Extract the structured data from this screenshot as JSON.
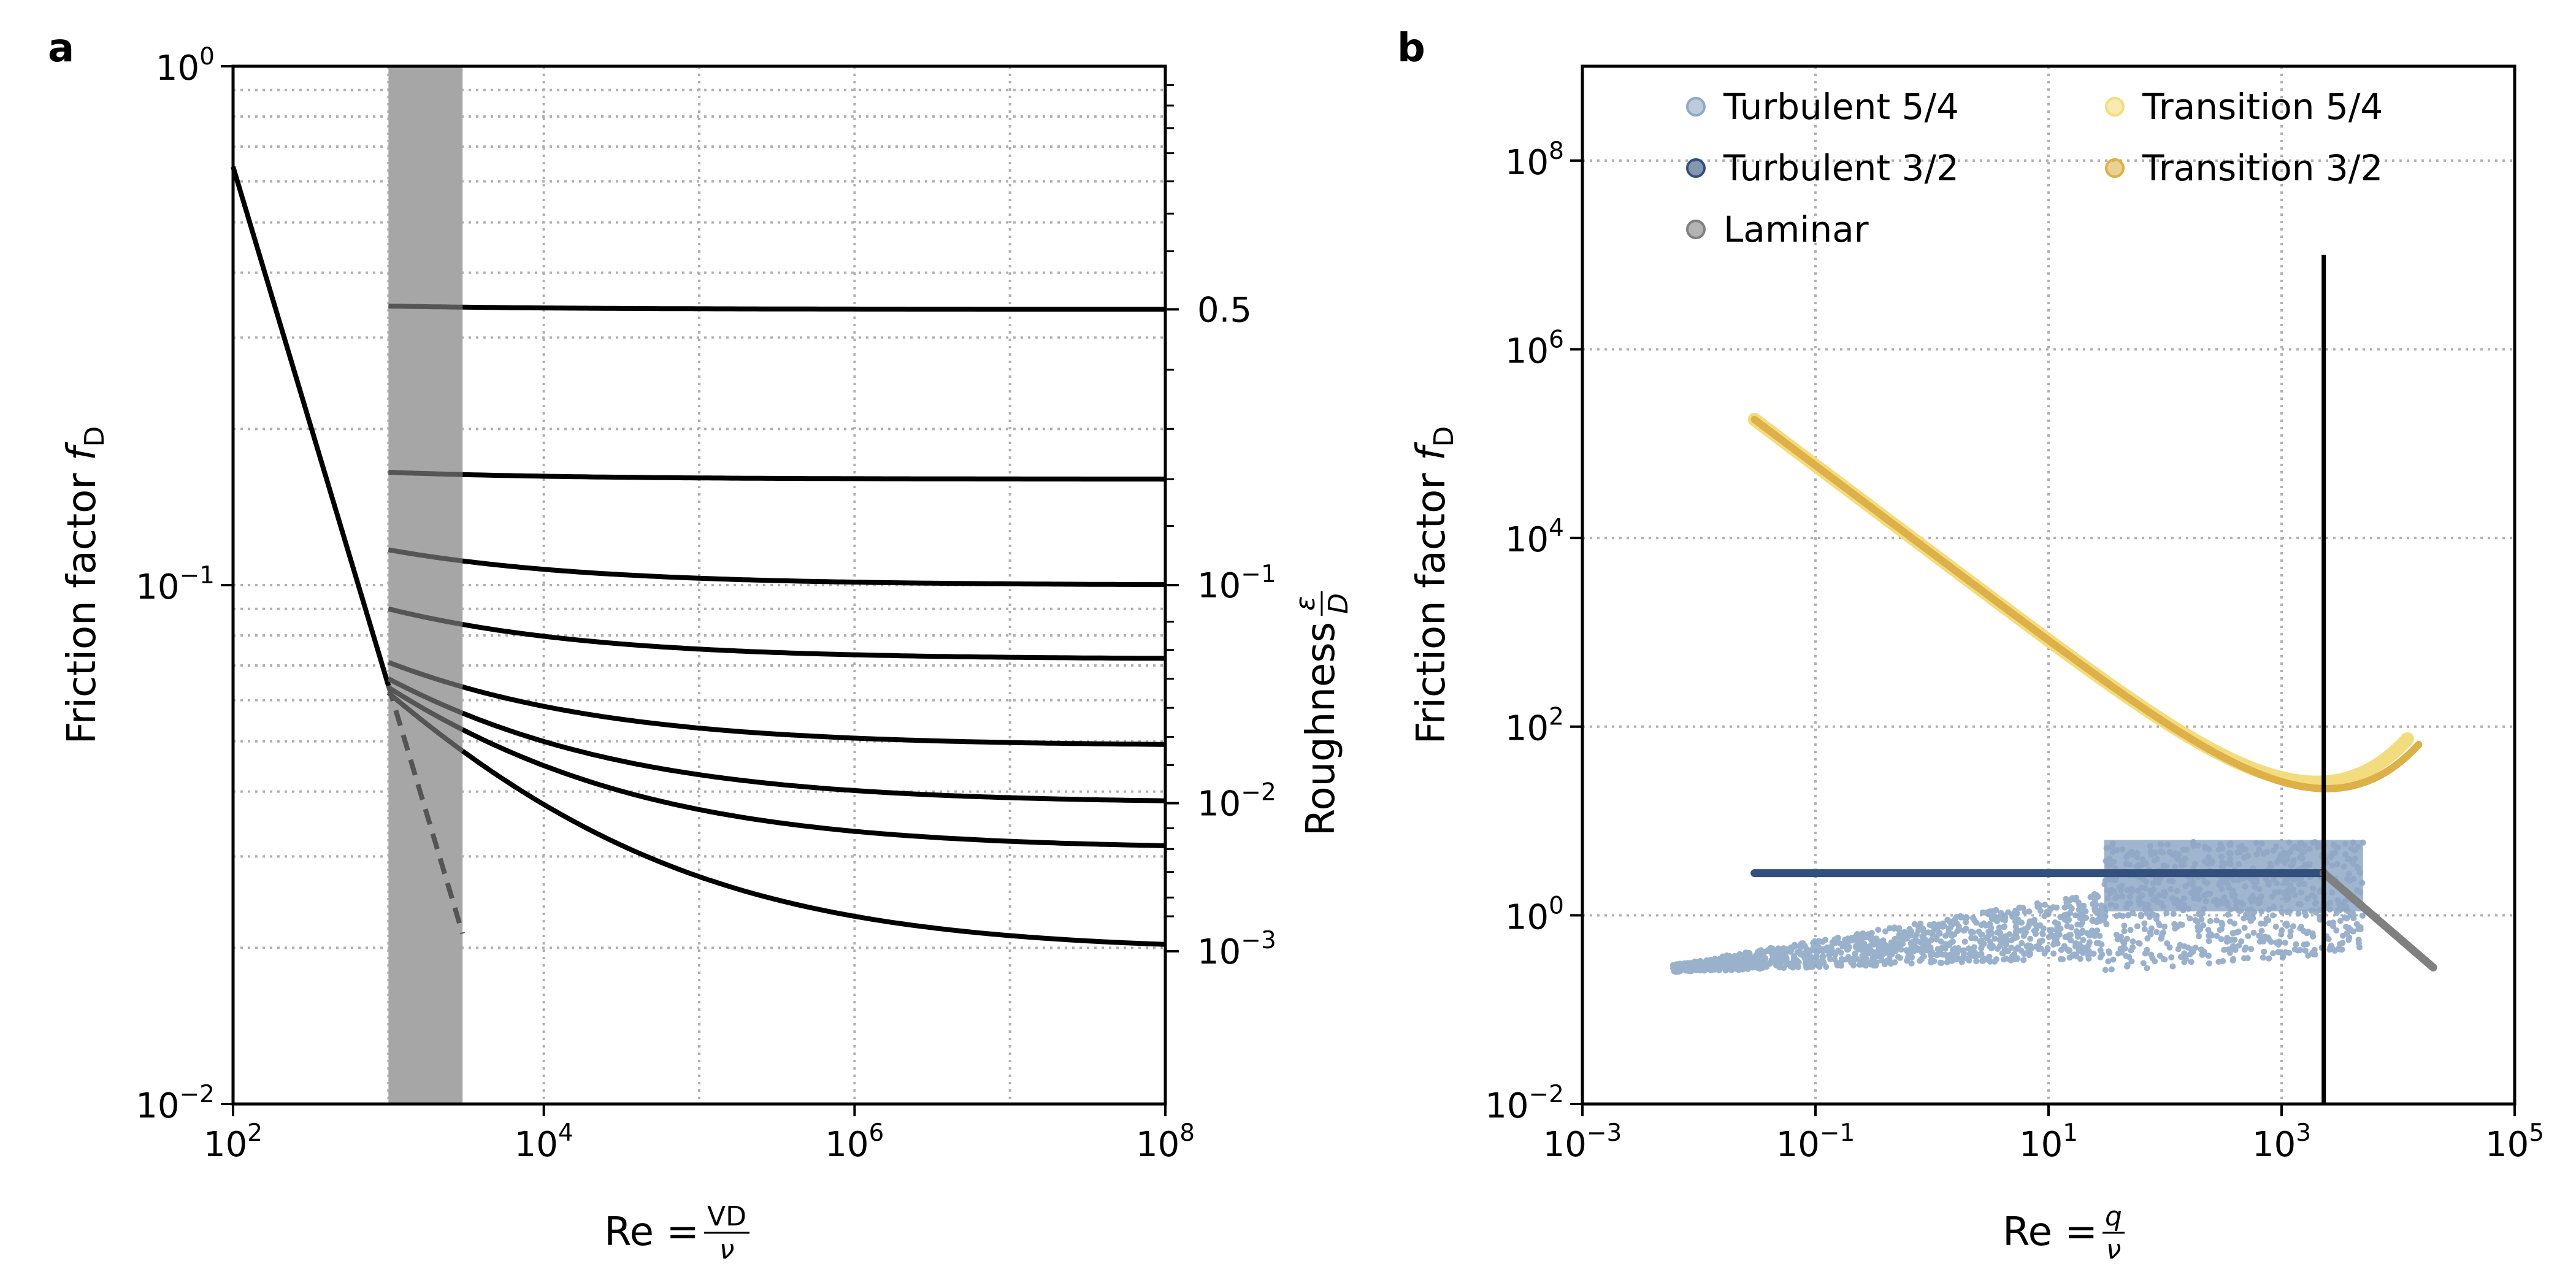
{
  "figure": {
    "panels": [
      {
        "label": "a",
        "ylabel_main": "Friction factor ",
        "ylabel_sub": "D",
        "xlabel": "Re = VD/ν",
        "xlabel_main": "Re = ",
        "xlabel_num": "VD",
        "xlabel_den": "ν",
        "right_axis_label": "Roughness ε/D",
        "right_axis_main": "Roughness ",
        "right_axis_num": "ε",
        "right_axis_den": "D"
      },
      {
        "label": "b",
        "ylabel_main": "Friction factor ",
        "ylabel_sub": "D",
        "xlabel": "Re = q/ν",
        "xlabel_main": "Re = ",
        "xlabel_num": "q",
        "xlabel_den": "ν"
      }
    ]
  },
  "chart_data": [
    {
      "type": "line",
      "panel": "a",
      "title": "",
      "xlabel": "Re = VD/ν",
      "ylabel": "Friction factor f_D",
      "xscale": "log",
      "yscale": "log",
      "xlim": [
        100,
        100000000
      ],
      "ylim": [
        0.01,
        1
      ],
      "grid": true,
      "x_ticks": [
        {
          "base": "10",
          "exp": "2",
          "value": 100
        },
        {
          "base": "10",
          "exp": "4",
          "value": 10000
        },
        {
          "base": "10",
          "exp": "6",
          "value": 1000000
        },
        {
          "base": "10",
          "exp": "8",
          "value": 100000000
        }
      ],
      "y_ticks": [
        {
          "base": "10",
          "exp": "−2",
          "value": 0.01
        },
        {
          "base": "10",
          "exp": "−1",
          "value": 0.1
        },
        {
          "base": "10",
          "exp": "0",
          "value": 1
        }
      ],
      "right_axis": {
        "label": "Roughness ε/D",
        "ticks": [
          {
            "text": "0.5",
            "base": "",
            "exp": "",
            "f": 0.34
          },
          {
            "text": "",
            "base": "10",
            "exp": "−1",
            "f": 0.1
          },
          {
            "text": "",
            "base": "10",
            "exp": "−2",
            "f": 0.038
          },
          {
            "text": "",
            "base": "10",
            "exp": "−3",
            "f": 0.0197
          }
        ],
        "minor_f": [
          0.92,
          0.84,
          0.76,
          0.68,
          0.6,
          0.52,
          0.44,
          0.26,
          0.2,
          0.16,
          0.13,
          0.085,
          0.075,
          0.066,
          0.058,
          0.051,
          0.045,
          0.034,
          0.031,
          0.028,
          0.025,
          0.023
        ]
      },
      "shaded_band": {
        "x": [
          1000,
          3000
        ],
        "color": "#a6a6a6"
      },
      "laminar": {
        "x": [
          100,
          1000
        ],
        "y": [
          0.64,
          0.064
        ]
      },
      "laminar_extension": {
        "x": [
          1000,
          3000
        ],
        "y": [
          0.064,
          0.0213
        ],
        "style": "dashed",
        "color": "#555555"
      },
      "series": [
        {
          "roughness": 0.5,
          "f_inf": 0.34,
          "f_at_1000": 0.345
        },
        {
          "roughness": 0.2,
          "f_inf": 0.16,
          "f_at_1000": 0.165
        },
        {
          "roughness": 0.1,
          "f_inf": 0.1,
          "f_at_1000": 0.117
        },
        {
          "roughness": 0.05,
          "f_inf": 0.072,
          "f_at_1000": 0.09
        },
        {
          "roughness": 0.02,
          "f_inf": 0.049,
          "f_at_1000": 0.071
        },
        {
          "roughness": 0.01,
          "f_inf": 0.038,
          "f_at_1000": 0.066
        },
        {
          "roughness": 0.005,
          "f_inf": 0.031,
          "f_at_1000": 0.0635
        },
        {
          "roughness": 0.001,
          "f_inf": 0.0197,
          "f_at_1000": 0.062
        }
      ]
    },
    {
      "type": "scatter",
      "panel": "b",
      "title": "",
      "xlabel": "Re = q/ν",
      "ylabel": "Friction factor f_D",
      "xscale": "log",
      "yscale": "log",
      "xlim": [
        0.001,
        100000
      ],
      "ylim": [
        0.01,
        1000000000
      ],
      "grid": true,
      "legend_position": "top",
      "x_ticks": [
        {
          "base": "10",
          "exp": "−3",
          "value": 0.001
        },
        {
          "base": "10",
          "exp": "−1",
          "value": 0.1
        },
        {
          "base": "10",
          "exp": "1",
          "value": 10
        },
        {
          "base": "10",
          "exp": "3",
          "value": 1000
        },
        {
          "base": "10",
          "exp": "5",
          "value": 100000
        }
      ],
      "y_ticks": [
        {
          "base": "10",
          "exp": "−2",
          "value": 0.01
        },
        {
          "base": "10",
          "exp": "0",
          "value": 1
        },
        {
          "base": "10",
          "exp": "2",
          "value": 100
        },
        {
          "base": "10",
          "exp": "4",
          "value": 10000
        },
        {
          "base": "10",
          "exp": "6",
          "value": 1000000
        },
        {
          "base": "10",
          "exp": "8",
          "value": 100000000
        }
      ],
      "vertical_line": {
        "x": 2300
      },
      "series": [
        {
          "name": "Turbulent 5/4",
          "color": "#8fa8c6",
          "kind": "cloud",
          "x_range": [
            0.006,
            5000
          ],
          "y_range": [
            0.25,
            6
          ]
        },
        {
          "name": "Turbulent 3/2",
          "color": "#33507d",
          "kind": "flat",
          "x_range": [
            0.03,
            2300
          ],
          "y": 2.8
        },
        {
          "name": "Laminar",
          "color": "#808080",
          "kind": "line",
          "x_range": [
            2300,
            20000
          ],
          "y_at_min": 2.8,
          "y_at_max": 0.28
        },
        {
          "name": "Transition 5/4",
          "color": "#f3dc7d",
          "kind": "curve",
          "x_range": [
            0.03,
            12000
          ],
          "y_start": 180000,
          "y_end": 2.5
        },
        {
          "name": "Transition 3/2",
          "color": "#ddb048",
          "kind": "curve",
          "x_range": [
            0.03,
            15000
          ],
          "y_start": 180000,
          "y_end": 3.2
        }
      ]
    }
  ]
}
